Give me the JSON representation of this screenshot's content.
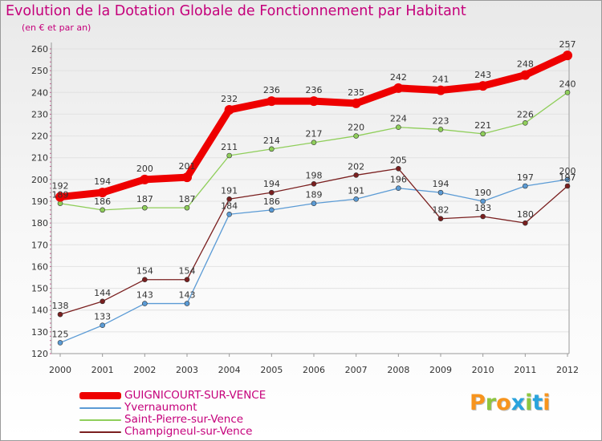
{
  "header": {
    "title": "Evolution de la Dotation Globale de Fonctionnement par Habitant",
    "subtitle": "(en € et par an)"
  },
  "logo": {
    "text": "Proxiti",
    "letters": [
      "P",
      "r",
      "o",
      "x",
      "i",
      "t",
      "i"
    ],
    "colors": [
      "#f7941d",
      "#8dc63f",
      "#f7941d",
      "#29a3dd",
      "#8dc63f",
      "#29a3dd",
      "#f7941d"
    ]
  },
  "colors": {
    "title": "#c5007b",
    "axis": "#9a9a9a",
    "grid": "#e2e2e2"
  },
  "chart_data": {
    "type": "line",
    "title": "Evolution de la Dotation Globale de Fonctionnement par Habitant",
    "subtitle": "(en € et par an)",
    "xlabel": "",
    "ylabel": "",
    "x": [
      "2000",
      "2001",
      "2002",
      "2003",
      "2004",
      "2005",
      "2006",
      "2007",
      "2008",
      "2009",
      "2010",
      "2011",
      "2012"
    ],
    "ylim": [
      120,
      260
    ],
    "yticks": [
      120,
      130,
      140,
      150,
      160,
      170,
      180,
      190,
      200,
      210,
      220,
      230,
      240,
      250,
      260
    ],
    "grid": true,
    "legend_position": "bottom-left",
    "series": [
      {
        "name": "GUIGNICOURT-SUR-VENCE",
        "values": [
          192,
          194,
          200,
          201,
          232,
          236,
          236,
          235,
          242,
          241,
          243,
          248,
          257
        ],
        "color": "#ee0000",
        "emphasis": true
      },
      {
        "name": "Yvernaumont",
        "values": [
          125,
          133,
          143,
          143,
          184,
          186,
          189,
          191,
          196,
          194,
          190,
          197,
          200
        ],
        "color": "#5b9bd5",
        "emphasis": false
      },
      {
        "name": "Saint-Pierre-sur-Vence",
        "values": [
          189,
          186,
          187,
          187,
          211,
          214,
          217,
          220,
          224,
          223,
          221,
          226,
          240
        ],
        "color": "#8fce5a",
        "emphasis": false
      },
      {
        "name": "Champigneul-sur-Vence",
        "values": [
          138,
          144,
          154,
          154,
          191,
          194,
          198,
          202,
          205,
          182,
          183,
          180,
          197
        ],
        "color": "#7a1f1f",
        "emphasis": false
      }
    ]
  }
}
